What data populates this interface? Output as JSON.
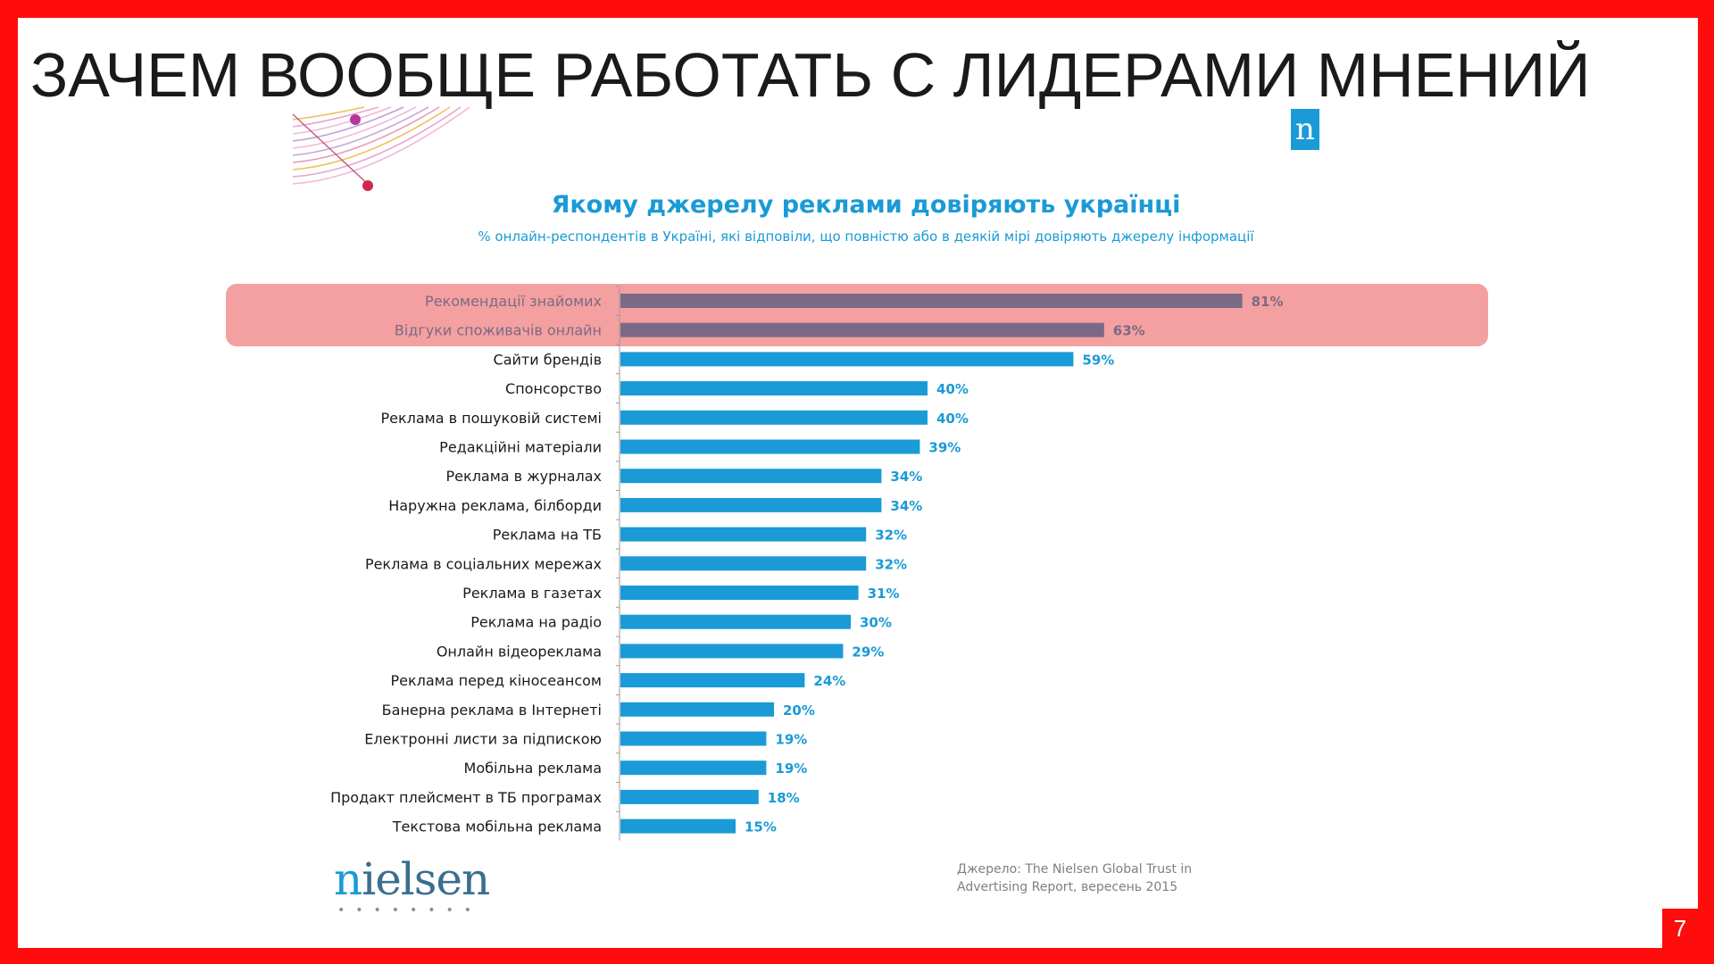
{
  "slide": {
    "title": "ЗАЧЕМ ВООБЩЕ РАБОТАТЬ С ЛИДЕРАМИ МНЕНИЙ",
    "page_number": "7"
  },
  "badge": {
    "letter": "n"
  },
  "source": {
    "line1": "Джерело: The Nielsen Global  Trust in",
    "line2": "Advertising Report, вересень  2015"
  },
  "logo": {
    "first_letter": "n",
    "rest": "ielsen",
    "dots": "••••••••"
  },
  "colors": {
    "frame": "#ff0d0d",
    "bar_default": "#1a9ad6",
    "bar_highlight": "#7a6a86",
    "label_highlight": "#7a6a86",
    "highlight_band": "#f4a0a0"
  },
  "chart_data": {
    "type": "bar",
    "orientation": "horizontal",
    "title": "Якому джерелу реклами довіряють українці",
    "subtitle": "% онлайн-респондентів  в Україні, які відповіли, що повністю  або в деякій мірі довіряють джерелу інформації",
    "categories": [
      "Рекомендації знайомих",
      "Відгуки споживачів онлайн",
      "Сайти брендів",
      "Спонсорство",
      "Реклама в пошуковій системі",
      "Редакційні матеріали",
      "Реклама в журналах",
      "Наружна реклама, білборди",
      "Реклама на ТБ",
      "Реклама в соціальних мережах",
      "Реклама в газетах",
      "Реклама на радіо",
      "Онлайн відеореклама",
      "Реклама перед кіносеансом",
      "Банерна реклама в Інтернеті",
      "Електронні  листи за підпискою",
      "Мобільна реклама",
      "Продакт плейсмент в ТБ програмах",
      "Текстова мобільна  реклама"
    ],
    "values": [
      81,
      63,
      59,
      40,
      40,
      39,
      34,
      34,
      32,
      32,
      31,
      30,
      29,
      24,
      20,
      19,
      19,
      18,
      15
    ],
    "value_labels": [
      "81%",
      "63%",
      "59%",
      "40%",
      "40%",
      "39%",
      "34%",
      "34%",
      "32%",
      "32%",
      "31%",
      "30%",
      "29%",
      "24%",
      "20%",
      "19%",
      "19%",
      "18%",
      "15%"
    ],
    "highlighted": [
      0,
      1
    ],
    "unit": "%",
    "xlim": [
      0,
      100
    ]
  }
}
